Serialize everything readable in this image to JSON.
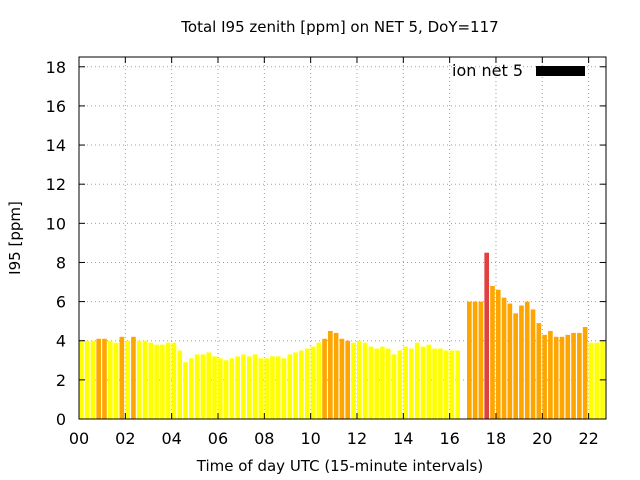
{
  "chart_data": {
    "type": "bar",
    "title": "Total I95 zenith [ppm] on NET 5, DoY=117",
    "xlabel": "Time of day UTC (15-minute intervals)",
    "ylabel": "I95 [ppm]",
    "xlim": [
      0,
      22.75
    ],
    "ylim": [
      0,
      18.5
    ],
    "x_ticks": [
      "00",
      "02",
      "04",
      "06",
      "08",
      "10",
      "12",
      "14",
      "16",
      "18",
      "20",
      "22"
    ],
    "x_tick_values": [
      0,
      2,
      4,
      6,
      8,
      10,
      12,
      14,
      16,
      18,
      20,
      22
    ],
    "y_ticks": [
      "0",
      "2",
      "4",
      "6",
      "8",
      "10",
      "12",
      "14",
      "16",
      "18"
    ],
    "y_tick_values": [
      0,
      2,
      4,
      6,
      8,
      10,
      12,
      14,
      16,
      18
    ],
    "grid": true,
    "legend": {
      "label": "ion net 5",
      "color": "#000000",
      "placement": "top-right"
    },
    "colors": {
      "low": "#ffff00",
      "mid": "#ffa500",
      "high": "#e04040"
    },
    "bar_width_hours": 0.2,
    "bars": [
      {
        "x": 0.0,
        "value": 4.0,
        "level": "low"
      },
      {
        "x": 0.25,
        "value": 4.0,
        "level": "low"
      },
      {
        "x": 0.5,
        "value": 4.0,
        "level": "low"
      },
      {
        "x": 0.75,
        "value": 4.1,
        "level": "mid"
      },
      {
        "x": 1.0,
        "value": 4.1,
        "level": "mid"
      },
      {
        "x": 1.25,
        "value": 4.0,
        "level": "low"
      },
      {
        "x": 1.5,
        "value": 3.9,
        "level": "low"
      },
      {
        "x": 1.75,
        "value": 4.2,
        "level": "mid"
      },
      {
        "x": 2.0,
        "value": 4.0,
        "level": "low"
      },
      {
        "x": 2.25,
        "value": 4.2,
        "level": "mid"
      },
      {
        "x": 2.5,
        "value": 4.0,
        "level": "low"
      },
      {
        "x": 2.75,
        "value": 4.0,
        "level": "low"
      },
      {
        "x": 3.0,
        "value": 3.9,
        "level": "low"
      },
      {
        "x": 3.25,
        "value": 3.8,
        "level": "low"
      },
      {
        "x": 3.5,
        "value": 3.8,
        "level": "low"
      },
      {
        "x": 3.75,
        "value": 3.9,
        "level": "low"
      },
      {
        "x": 4.0,
        "value": 3.9,
        "level": "low"
      },
      {
        "x": 4.25,
        "value": 3.5,
        "level": "low"
      },
      {
        "x": 4.5,
        "value": 2.9,
        "level": "low"
      },
      {
        "x": 4.75,
        "value": 3.1,
        "level": "low"
      },
      {
        "x": 5.0,
        "value": 3.3,
        "level": "low"
      },
      {
        "x": 5.25,
        "value": 3.3,
        "level": "low"
      },
      {
        "x": 5.5,
        "value": 3.4,
        "level": "low"
      },
      {
        "x": 5.75,
        "value": 3.2,
        "level": "low"
      },
      {
        "x": 6.0,
        "value": 3.1,
        "level": "low"
      },
      {
        "x": 6.25,
        "value": 3.0,
        "level": "low"
      },
      {
        "x": 6.5,
        "value": 3.1,
        "level": "low"
      },
      {
        "x": 6.75,
        "value": 3.2,
        "level": "low"
      },
      {
        "x": 7.0,
        "value": 3.3,
        "level": "low"
      },
      {
        "x": 7.25,
        "value": 3.2,
        "level": "low"
      },
      {
        "x": 7.5,
        "value": 3.3,
        "level": "low"
      },
      {
        "x": 7.75,
        "value": 3.1,
        "level": "low"
      },
      {
        "x": 8.0,
        "value": 3.1,
        "level": "low"
      },
      {
        "x": 8.25,
        "value": 3.2,
        "level": "low"
      },
      {
        "x": 8.5,
        "value": 3.2,
        "level": "low"
      },
      {
        "x": 8.75,
        "value": 3.1,
        "level": "low"
      },
      {
        "x": 9.0,
        "value": 3.3,
        "level": "low"
      },
      {
        "x": 9.25,
        "value": 3.4,
        "level": "low"
      },
      {
        "x": 9.5,
        "value": 3.5,
        "level": "low"
      },
      {
        "x": 9.75,
        "value": 3.6,
        "level": "low"
      },
      {
        "x": 10.0,
        "value": 3.7,
        "level": "low"
      },
      {
        "x": 10.25,
        "value": 3.9,
        "level": "low"
      },
      {
        "x": 10.5,
        "value": 4.1,
        "level": "mid"
      },
      {
        "x": 10.75,
        "value": 4.5,
        "level": "mid"
      },
      {
        "x": 11.0,
        "value": 4.4,
        "level": "mid"
      },
      {
        "x": 11.25,
        "value": 4.1,
        "level": "mid"
      },
      {
        "x": 11.5,
        "value": 4.0,
        "level": "mid"
      },
      {
        "x": 11.75,
        "value": 3.9,
        "level": "low"
      },
      {
        "x": 12.0,
        "value": 4.0,
        "level": "low"
      },
      {
        "x": 12.25,
        "value": 3.9,
        "level": "low"
      },
      {
        "x": 12.5,
        "value": 3.7,
        "level": "low"
      },
      {
        "x": 12.75,
        "value": 3.6,
        "level": "low"
      },
      {
        "x": 13.0,
        "value": 3.7,
        "level": "low"
      },
      {
        "x": 13.25,
        "value": 3.6,
        "level": "low"
      },
      {
        "x": 13.5,
        "value": 3.3,
        "level": "low"
      },
      {
        "x": 13.75,
        "value": 3.5,
        "level": "low"
      },
      {
        "x": 14.0,
        "value": 3.7,
        "level": "low"
      },
      {
        "x": 14.25,
        "value": 3.6,
        "level": "low"
      },
      {
        "x": 14.5,
        "value": 3.9,
        "level": "low"
      },
      {
        "x": 14.75,
        "value": 3.7,
        "level": "low"
      },
      {
        "x": 15.0,
        "value": 3.8,
        "level": "low"
      },
      {
        "x": 15.25,
        "value": 3.6,
        "level": "low"
      },
      {
        "x": 15.5,
        "value": 3.6,
        "level": "low"
      },
      {
        "x": 15.75,
        "value": 3.5,
        "level": "low"
      },
      {
        "x": 16.0,
        "value": 3.5,
        "level": "low"
      },
      {
        "x": 16.25,
        "value": 3.5,
        "level": "low"
      },
      {
        "x": 16.75,
        "value": 6.0,
        "level": "mid"
      },
      {
        "x": 17.0,
        "value": 6.0,
        "level": "mid"
      },
      {
        "x": 17.25,
        "value": 6.0,
        "level": "mid"
      },
      {
        "x": 17.5,
        "value": 8.5,
        "level": "high"
      },
      {
        "x": 17.75,
        "value": 6.8,
        "level": "mid"
      },
      {
        "x": 18.0,
        "value": 6.6,
        "level": "mid"
      },
      {
        "x": 18.25,
        "value": 6.2,
        "level": "mid"
      },
      {
        "x": 18.5,
        "value": 5.9,
        "level": "mid"
      },
      {
        "x": 18.75,
        "value": 5.4,
        "level": "mid"
      },
      {
        "x": 19.0,
        "value": 5.8,
        "level": "mid"
      },
      {
        "x": 19.25,
        "value": 6.0,
        "level": "mid"
      },
      {
        "x": 19.5,
        "value": 5.6,
        "level": "mid"
      },
      {
        "x": 19.75,
        "value": 4.9,
        "level": "mid"
      },
      {
        "x": 20.0,
        "value": 4.3,
        "level": "mid"
      },
      {
        "x": 20.25,
        "value": 4.5,
        "level": "mid"
      },
      {
        "x": 20.5,
        "value": 4.2,
        "level": "mid"
      },
      {
        "x": 20.75,
        "value": 4.2,
        "level": "mid"
      },
      {
        "x": 21.0,
        "value": 4.3,
        "level": "mid"
      },
      {
        "x": 21.25,
        "value": 4.4,
        "level": "mid"
      },
      {
        "x": 21.5,
        "value": 4.4,
        "level": "mid"
      },
      {
        "x": 21.75,
        "value": 4.7,
        "level": "mid"
      },
      {
        "x": 22.0,
        "value": 3.9,
        "level": "low"
      },
      {
        "x": 22.25,
        "value": 3.9,
        "level": "low"
      },
      {
        "x": 22.5,
        "value": 4.0,
        "level": "low"
      }
    ]
  }
}
